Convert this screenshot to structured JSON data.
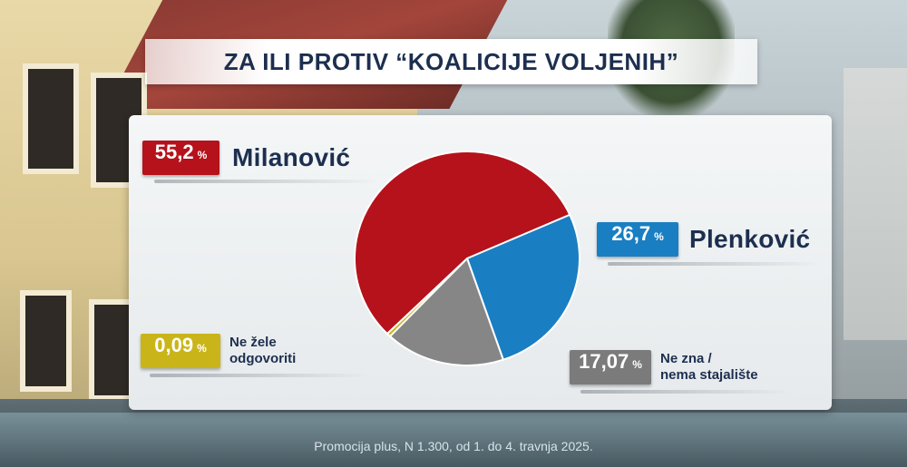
{
  "title": "ZA ILI PROTIV “KOALICIJE VOLJENIH”",
  "percent_sign": "%",
  "footer": "Promocija plus, N 1.300, od 1. do 4. travnja 2025.",
  "chart_data": {
    "type": "pie",
    "title": "ZA ILI PROTIV “KOALICIJE VOLJENIH”",
    "slices": [
      {
        "label": "Milanović",
        "value": 55.2,
        "display": "55,2",
        "color": "#b5121b"
      },
      {
        "label": "Plenković",
        "value": 26.7,
        "display": "26,7",
        "color": "#1a7ec2"
      },
      {
        "label": "Ne zna / nema stajalište",
        "label_lines": [
          "Ne zna /",
          "nema stajalište"
        ],
        "value": 17.07,
        "display": "17,07",
        "color": "#868686"
      },
      {
        "label": "Ne žele odgovoriti",
        "label_lines": [
          "Ne žele",
          "odgovoriti"
        ],
        "value": 0.09,
        "display": "0,09",
        "color": "#c9b51a"
      }
    ]
  }
}
